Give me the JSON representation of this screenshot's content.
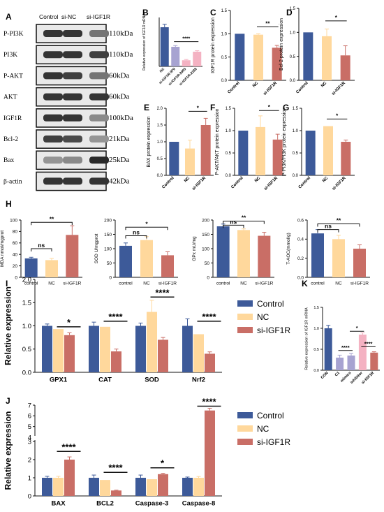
{
  "panel_labels": [
    "A",
    "B",
    "C",
    "D",
    "E",
    "F",
    "G",
    "H",
    "I",
    "J",
    "K"
  ],
  "blot": {
    "lanes": [
      "Control",
      "si-NC",
      "si-IGF1R"
    ],
    "proteins": [
      "P-PI3K",
      "PI3K",
      "P-AKT",
      "AKT",
      "IGF1R",
      "Bcl-2",
      "Bax",
      "β-actin"
    ],
    "weights": [
      "110kDa",
      "110kDa",
      "60kDa",
      "60kDa",
      "100kDa",
      "21kDa",
      "25kDa",
      "42kDa"
    ],
    "intensity": [
      [
        0.85,
        0.85,
        0.55
      ],
      [
        0.85,
        0.85,
        0.8
      ],
      [
        0.85,
        0.8,
        0.55
      ],
      [
        0.85,
        0.85,
        0.85
      ],
      [
        0.85,
        0.85,
        0.45
      ],
      [
        0.8,
        0.75,
        0.4
      ],
      [
        0.4,
        0.45,
        0.9
      ],
      [
        0.85,
        0.85,
        0.85
      ]
    ]
  },
  "colors": {
    "control": "#3d5a99",
    "nc": "#ffd89c",
    "si": "#c96e66",
    "mimics": "#a7a3d1",
    "inhibitor": "#f4b2c2",
    "axis": "#111111"
  },
  "legend": [
    "Control",
    "NC",
    "si-IGF1R"
  ],
  "chart_data": [
    {
      "id": "B",
      "type": "bar",
      "ylabel": "Relative expression of IGF1R mRNA",
      "categories": [
        "NC",
        "si-IGF1R-979",
        "si-IGF1R-2005",
        "si-IGF1R-2188"
      ],
      "values": [
        1.6,
        0.8,
        0.25,
        0.6
      ],
      "errors": [
        0.12,
        0.05,
        0.03,
        0.04
      ],
      "ylim": [
        0,
        2
      ],
      "yticks": [],
      "sig": [
        {
          "from": 1,
          "to": 3,
          "label": "****"
        }
      ]
    },
    {
      "id": "C",
      "type": "bar",
      "ylabel": "IGF1R protein expression",
      "categories": [
        "Control",
        "NC",
        "si-IGF1R"
      ],
      "values": [
        1.0,
        0.98,
        0.7
      ],
      "errors": [
        0.0,
        0.02,
        0.05
      ],
      "ylim": [
        0,
        1.5
      ],
      "yticks": [
        "0.0",
        "0.5",
        "1.0",
        "1.5"
      ],
      "sig": [
        {
          "from": 1,
          "to": 2,
          "label": "**"
        }
      ]
    },
    {
      "id": "D",
      "type": "bar",
      "ylabel": "Bcl-2 protein expression",
      "categories": [
        "Control",
        "NC",
        "si-IGF1R"
      ],
      "values": [
        1.0,
        0.92,
        0.52
      ],
      "errors": [
        0.0,
        0.15,
        0.2
      ],
      "ylim": [
        0,
        1.5
      ],
      "yticks": [
        "0.0",
        "0.5",
        "1.0",
        "1.5"
      ],
      "sig": [
        {
          "from": 1,
          "to": 2,
          "label": "*"
        }
      ]
    },
    {
      "id": "E",
      "type": "bar",
      "ylabel": "BAX protein expression",
      "categories": [
        "Control",
        "NC",
        "si-IGF1R"
      ],
      "values": [
        1.0,
        0.8,
        1.5
      ],
      "errors": [
        0.0,
        0.25,
        0.2
      ],
      "ylim": [
        0,
        2.0
      ],
      "yticks": [
        "0.0",
        "0.5",
        "1.0",
        "1.5",
        "2.0"
      ],
      "sig": [
        {
          "from": 1,
          "to": 2,
          "label": "*"
        }
      ]
    },
    {
      "id": "F",
      "type": "bar",
      "ylabel": "P-AKT/AKT protein expression",
      "categories": [
        "Control",
        "NC",
        "si-IGF1R"
      ],
      "values": [
        1.0,
        1.08,
        0.8
      ],
      "errors": [
        0.0,
        0.25,
        0.12
      ],
      "ylim": [
        0,
        1.5
      ],
      "yticks": [
        "0.0",
        "0.5",
        "1.0",
        "1.5"
      ],
      "sig": [
        {
          "from": 1,
          "to": 2,
          "label": "*"
        }
      ]
    },
    {
      "id": "G",
      "type": "bar",
      "ylabel": "P-PI3K/PI3K protein expression",
      "categories": [
        "Control",
        "NC",
        "si-IGF1R"
      ],
      "values": [
        1.0,
        1.1,
        0.75
      ],
      "errors": [
        0.0,
        0.0,
        0.04
      ],
      "ylim": [
        0,
        1.5
      ],
      "yticks": [
        "0.0",
        "0.5",
        "1.0",
        "1.5"
      ],
      "sig": [
        {
          "from": 1,
          "to": 2,
          "label": "*"
        }
      ]
    },
    {
      "id": "H1",
      "type": "bar",
      "ylabel": "MDA nmol/mgprot",
      "categories": [
        "control",
        "NC",
        "si-IGF1R"
      ],
      "values": [
        33,
        30,
        74
      ],
      "errors": [
        2,
        3,
        16
      ],
      "ylim": [
        0,
        100
      ],
      "yticks": [
        "0",
        "20",
        "40",
        "60",
        "80",
        "100"
      ],
      "sig": [
        {
          "from": 0,
          "to": 1,
          "label": "ns",
          "h": 50
        },
        {
          "from": 0,
          "to": 2,
          "label": "**",
          "h": 96
        }
      ]
    },
    {
      "id": "H2",
      "type": "bar",
      "ylabel": "SOD U/mgprot",
      "categories": [
        "control",
        "NC",
        "si-IGF1R"
      ],
      "values": [
        110,
        130,
        77
      ],
      "errors": [
        10,
        12,
        12
      ],
      "ylim": [
        0,
        200
      ],
      "yticks": [
        "0",
        "50",
        "100",
        "150",
        "200"
      ],
      "sig": [
        {
          "from": 0,
          "to": 1,
          "label": "ns",
          "h": 145
        },
        {
          "from": 0,
          "to": 2,
          "label": "*",
          "h": 175
        }
      ]
    },
    {
      "id": "H3",
      "type": "bar",
      "ylabel": "GPx mU/mg",
      "categories": [
        "control",
        "NC",
        "si-IGF1R"
      ],
      "values": [
        178,
        165,
        145
      ],
      "errors": [
        8,
        4,
        12
      ],
      "ylim": [
        0,
        200
      ],
      "yticks": [
        "0",
        "50",
        "100",
        "150",
        "200"
      ],
      "sig": [
        {
          "from": 0,
          "to": 1,
          "label": "ns",
          "h": 182
        },
        {
          "from": 0,
          "to": 2,
          "label": "**",
          "h": 196
        }
      ]
    },
    {
      "id": "H4",
      "type": "bar",
      "ylabel": "T-AOC(mmol/g)",
      "categories": [
        "control",
        "NC",
        "si-IGF1R"
      ],
      "values": [
        0.46,
        0.4,
        0.3
      ],
      "errors": [
        0.04,
        0.04,
        0.04
      ],
      "ylim": [
        0,
        0.6
      ],
      "yticks": [
        "0.0",
        "0.2",
        "0.4",
        "0.6"
      ],
      "sig": [
        {
          "from": 0,
          "to": 1,
          "label": "ns",
          "h": 0.5
        },
        {
          "from": 0,
          "to": 2,
          "label": "**",
          "h": 0.56
        }
      ]
    },
    {
      "id": "I",
      "type": "grouped-bar",
      "ylabel": "Relative expression",
      "categories": [
        "GPX1",
        "CAT",
        "SOD",
        "Nrf2"
      ],
      "series": [
        {
          "name": "Control",
          "values": [
            1.0,
            1.0,
            1.0,
            1.0
          ],
          "errors": [
            0.04,
            0.08,
            0.06,
            0.15
          ]
        },
        {
          "name": "NC",
          "values": [
            0.93,
            0.98,
            1.3,
            0.82
          ],
          "errors": [
            0.0,
            0.0,
            0.25,
            0.0
          ]
        },
        {
          "name": "si-IGF1R",
          "values": [
            0.8,
            0.45,
            0.7,
            0.4
          ],
          "errors": [
            0.05,
            0.05,
            0.05,
            0.04
          ]
        }
      ],
      "ylim": [
        0,
        2.0
      ],
      "yticks": [
        "0.0",
        "0.5",
        "1.0",
        "1.5",
        "2.0"
      ],
      "sig": [
        {
          "group": 0,
          "label": "*",
          "h": 0.98
        },
        {
          "group": 1,
          "label": "****",
          "h": 1.1
        },
        {
          "group": 2,
          "label": "****",
          "h": 1.62
        },
        {
          "group": 3,
          "label": "****",
          "h": 1.1
        }
      ]
    },
    {
      "id": "J",
      "type": "grouped-bar",
      "ylabel": "Relative expression",
      "categories": [
        "BAX",
        "BCL2",
        "Caspase-3",
        "Caspase-8"
      ],
      "series": [
        {
          "name": "Control",
          "values": [
            1.0,
            1.0,
            1.0,
            1.0
          ],
          "errors": [
            0.08,
            0.15,
            0.15,
            0.04
          ]
        },
        {
          "name": "NC",
          "values": [
            1.0,
            0.88,
            0.92,
            1.0
          ],
          "errors": [
            0.08,
            0.0,
            0.0,
            0.07
          ]
        },
        {
          "name": "si-IGF1R",
          "values": [
            2.0,
            0.3,
            1.2,
            6.5
          ],
          "errors": [
            0.15,
            0.02,
            0.05,
            0.2
          ]
        }
      ],
      "ylim": [
        0,
        7
      ],
      "yticks": [
        "0",
        "1",
        "2",
        "3",
        "4",
        "5",
        "6",
        "7"
      ],
      "broken_axis": [
        3,
        4
      ],
      "sig": [
        {
          "group": 0,
          "label": "****",
          "h": 2.45
        },
        {
          "group": 1,
          "label": "****",
          "h": 1.3
        },
        {
          "group": 2,
          "label": "*",
          "h": 1.55
        },
        {
          "group": 3,
          "label": "****",
          "h": 6.9
        }
      ]
    },
    {
      "id": "K",
      "type": "bar",
      "ylabel": "Relative expression of IGF1R mRNA",
      "categories": [
        "CON",
        "C1",
        "mimics",
        "inhibitor",
        "si-IGF1R"
      ],
      "values": [
        1.0,
        0.3,
        0.35,
        0.85,
        0.42
      ],
      "errors": [
        0.07,
        0.06,
        0.05,
        0.04,
        0.02
      ],
      "ylim": [
        0,
        1.5
      ],
      "yticks": [
        "0.0",
        "0.5",
        "1.0",
        "1.5"
      ],
      "sig": [
        {
          "from": 1,
          "to": 2,
          "label": "****",
          "h": 0.47
        },
        {
          "from": 2,
          "to": 3,
          "label": "*",
          "h": 0.93
        },
        {
          "from": 3,
          "to": 4,
          "label": "****",
          "h": 0.56
        }
      ]
    }
  ]
}
